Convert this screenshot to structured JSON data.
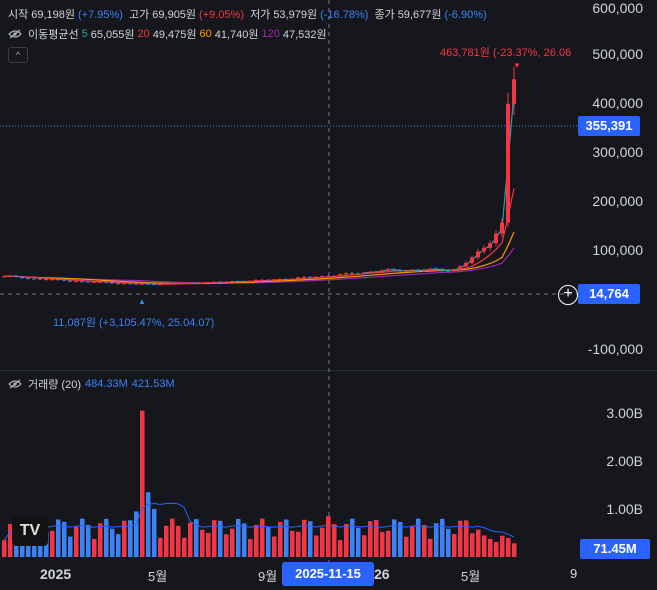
{
  "ohlc_legend": {
    "open_label": "시작",
    "open_value": "69,198원",
    "open_pct": "(+7.95%)",
    "high_label": "고가",
    "high_value": "69,905원",
    "high_pct": "(+9.05%)",
    "low_label": "저가",
    "low_value": "53,979원",
    "low_pct": "(-16.78%)",
    "close_label": "종가",
    "close_value": "59,677원",
    "close_pct": "(-6.90%)"
  },
  "ma_legend": {
    "icon": "eye-off-icon",
    "label": "이동평균선",
    "items": [
      {
        "period": "5",
        "value": "65,055원",
        "color": "#26a69a"
      },
      {
        "period": "20",
        "value": "49,475원",
        "color": "#f23645"
      },
      {
        "period": "60",
        "value": "41,740원",
        "color": "#ff9800"
      },
      {
        "period": "120",
        "value": "47,532원",
        "color": "#9c27b0"
      }
    ]
  },
  "collapse_button": {
    "icon": "chevron-up-icon",
    "glyph": "^"
  },
  "price_axis": {
    "ticks": [
      "600,000",
      "500,000",
      "400,000",
      "300,000",
      "200,000",
      "100,000",
      "-100,000"
    ],
    "current_price": "355,391",
    "crosshair_price": "14,764",
    "add_icon": "plus-circle-icon"
  },
  "annotations": {
    "high": "463,781원 (-23.37%, 26.06",
    "low": "11,087원 (+3,105.47%, 25.04.07)"
  },
  "volume_legend": {
    "icon": "eye-off-icon",
    "label": "거래량 (20)",
    "value1": "484.33M",
    "value2": "421.53M"
  },
  "volume_axis": {
    "ticks": [
      "3.00B",
      "2.00B",
      "1.00B"
    ],
    "current": "71.45M"
  },
  "time_axis": {
    "labels": [
      {
        "text": "2025",
        "bold": true
      },
      {
        "text": "5월",
        "bold": false
      },
      {
        "text": "9월",
        "bold": false
      },
      {
        "text": "26",
        "bold": true
      },
      {
        "text": "5월",
        "bold": false
      },
      {
        "text": "9",
        "bold": false
      }
    ],
    "crosshair_date": "2025-11-15"
  },
  "colors": {
    "up": "#f23645",
    "down": "#3b82f6",
    "ma5": "#26a69a",
    "ma20": "#f23645",
    "ma60": "#ff9800",
    "ma120": "#9c27b0",
    "volume_ma": "#2962ff"
  },
  "logo": {
    "name": "tradingview-logo",
    "glyph": "TV"
  }
}
